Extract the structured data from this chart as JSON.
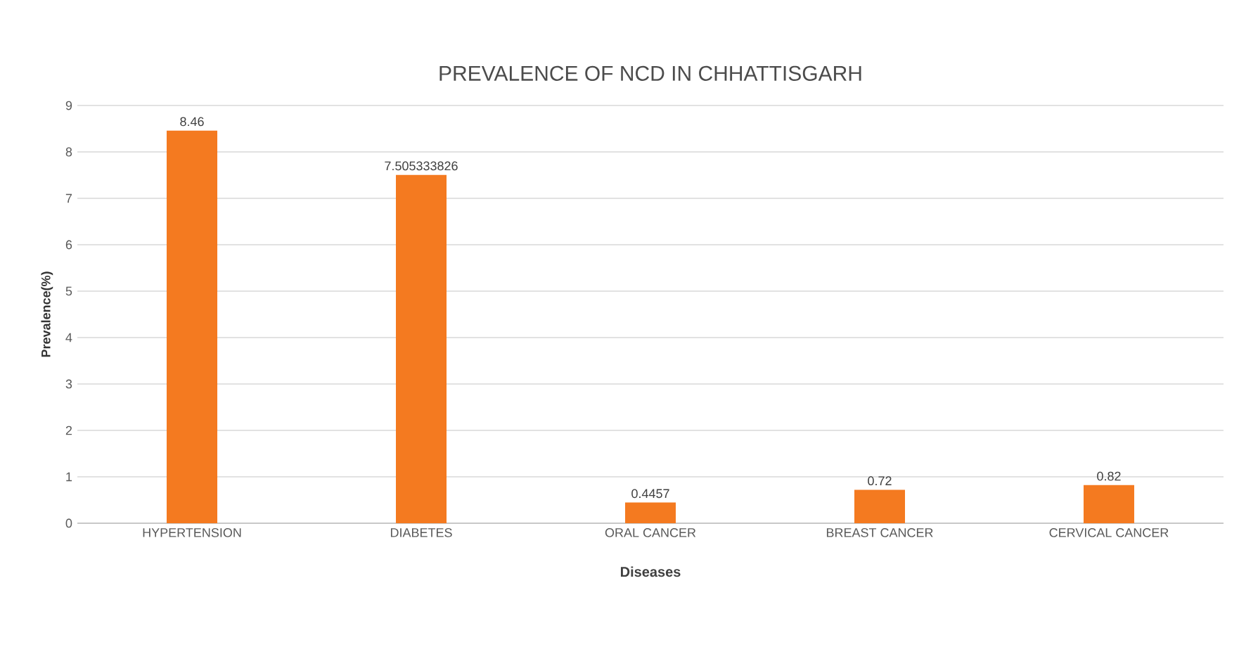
{
  "chart_data": {
    "type": "bar",
    "title": "PREVALENCE OF NCD IN CHHATTISGARH",
    "xlabel": "Diseases",
    "ylabel": "Prevalence(%)",
    "categories": [
      "HYPERTENSION",
      "DIABETES",
      "ORAL CANCER",
      "BREAST CANCER",
      "CERVICAL CANCER"
    ],
    "values": [
      8.46,
      7.505333826,
      0.4457,
      0.72,
      0.82
    ],
    "color": "#f47a20",
    "ylim": [
      0,
      9
    ],
    "yticks": [
      0,
      1,
      2,
      3,
      4,
      5,
      6,
      7,
      8,
      9
    ],
    "grid": "y",
    "data_labels": true
  }
}
